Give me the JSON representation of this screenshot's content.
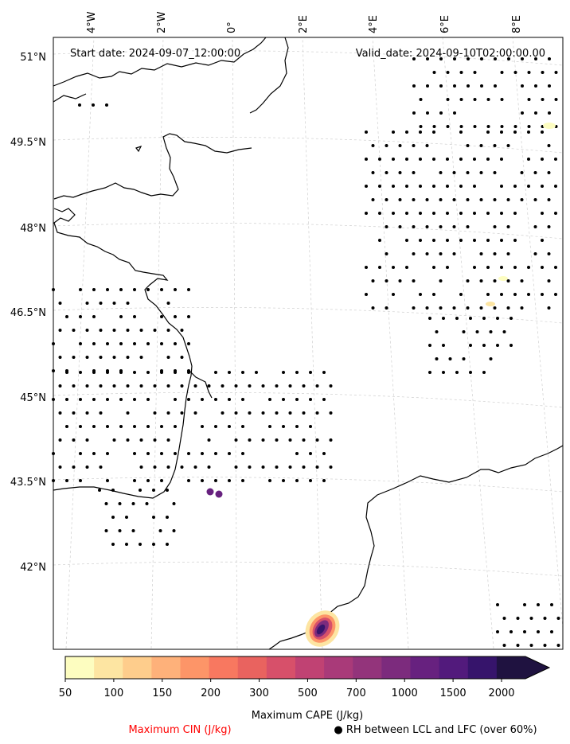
{
  "map": {
    "start_label": "Start date: 2024-09-07_12:00:00",
    "valid_label": "Valid_date: 2024-09-10T02:00:00.00",
    "lon_labels": [
      "4°W",
      "2°W",
      "0°",
      "2°E",
      "4°E",
      "6°E",
      "8°E"
    ],
    "lat_labels": [
      "51°N",
      "49.5°N",
      "48°N",
      "46.5°N",
      "45°N",
      "43.5°N",
      "42°N"
    ]
  },
  "colorbar": {
    "title": "Maximum CAPE (J/kg)",
    "ticks": [
      "50",
      "100",
      "150",
      "200",
      "300",
      "500",
      "700",
      "1000",
      "1500",
      "2000"
    ],
    "colors": [
      "#fdfdc0",
      "#fde5a2",
      "#fecd8c",
      "#feb17a",
      "#fd9568",
      "#f87860",
      "#e9635f",
      "#d7506a",
      "#c04273",
      "#a93a79",
      "#93347b",
      "#7c2b7d",
      "#67217f",
      "#521a7c",
      "#36146b",
      "#1f1240"
    ]
  },
  "legend": {
    "cin_label": "Maximum CIN (J/kg)",
    "cin_color": "#ff0000",
    "rh_label": "● RH between LCL and LFC (over 60%)"
  }
}
